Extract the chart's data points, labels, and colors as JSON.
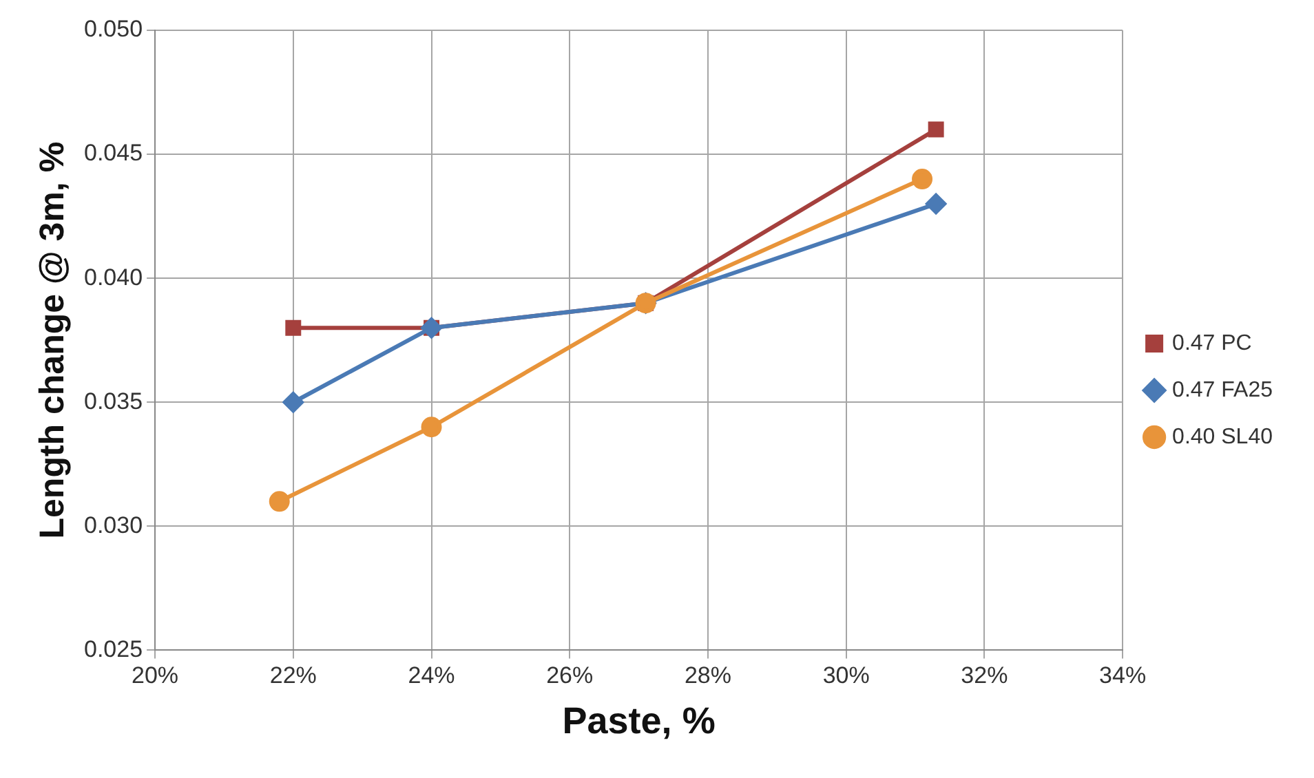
{
  "chart_data": {
    "type": "line",
    "xlabel": "Paste, %",
    "ylabel": "Length change @ 3m, %",
    "xlim": [
      20,
      34
    ],
    "xticks": [
      {
        "value": 20,
        "label": "20%"
      },
      {
        "value": 22,
        "label": "22%"
      },
      {
        "value": 24,
        "label": "24%"
      },
      {
        "value": 26,
        "label": "26%"
      },
      {
        "value": 28,
        "label": "28%"
      },
      {
        "value": 30,
        "label": "30%"
      },
      {
        "value": 32,
        "label": "32%"
      },
      {
        "value": 34,
        "label": "34%"
      }
    ],
    "ylim": [
      0.025,
      0.05
    ],
    "yticks": [
      {
        "value": 0.025,
        "label": "0.025"
      },
      {
        "value": 0.03,
        "label": "0.030"
      },
      {
        "value": 0.035,
        "label": "0.035"
      },
      {
        "value": 0.04,
        "label": "0.040"
      },
      {
        "value": 0.045,
        "label": "0.045"
      },
      {
        "value": 0.05,
        "label": "0.050"
      }
    ],
    "grid": true,
    "legend": "right",
    "line_style": "solid",
    "series": [
      {
        "name": "0.47 PC",
        "color": "#a5403d",
        "marker": "square",
        "x": [
          22.0,
          24.0,
          27.1,
          31.3
        ],
        "values": [
          0.038,
          0.038,
          0.039,
          0.046
        ]
      },
      {
        "name": "0.47 FA25",
        "color": "#4a7ab5",
        "marker": "diamond",
        "x": [
          22.0,
          24.0,
          27.1,
          31.3
        ],
        "values": [
          0.035,
          0.038,
          0.039,
          0.043
        ]
      },
      {
        "name": "0.40 SL40",
        "color": "#e8943a",
        "marker": "circle",
        "x": [
          21.8,
          24.0,
          27.1,
          31.1
        ],
        "values": [
          0.031,
          0.034,
          0.039,
          0.044
        ]
      }
    ]
  }
}
